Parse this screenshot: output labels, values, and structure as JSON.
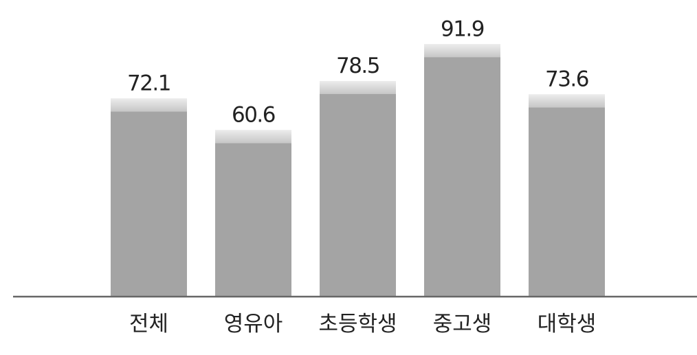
{
  "chart_data": {
    "type": "bar",
    "categories": [
      "전체",
      "영유아",
      "초등학생",
      "중고생",
      "대학생"
    ],
    "values": [
      72.1,
      60.6,
      78.5,
      91.9,
      73.6
    ],
    "value_labels": [
      "72.1",
      "60.6",
      "78.5",
      "91.9",
      "73.6"
    ],
    "title": "",
    "xlabel": "",
    "ylabel": "",
    "ylim": [
      0,
      108
    ],
    "grid": false,
    "legend": "none",
    "colors": {
      "bar": "#a4a4a4",
      "bar_highlight": "#dcdcdc",
      "axis": "#666666",
      "text": "#222222"
    }
  }
}
